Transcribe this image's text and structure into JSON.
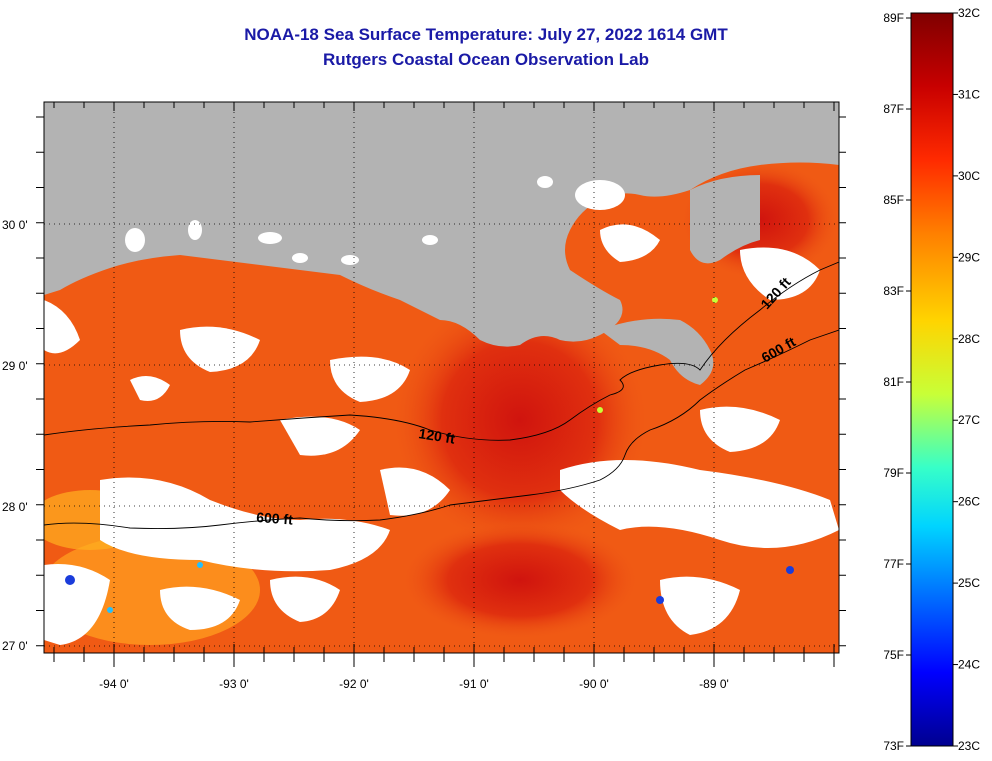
{
  "header": {
    "title": "NOAA-18 Sea Surface Temperature:  July 27, 2022 1614 GMT",
    "subtitle": "Rutgers Coastal Ocean Observation Lab"
  },
  "map": {
    "lon_labels": [
      "-94 0'",
      "-93 0'",
      "-92 0'",
      "-91 0'",
      "-90 0'",
      "-89 0'"
    ],
    "lat_labels": [
      "30 0'",
      "29 0'",
      "28 0'",
      "27 0'"
    ],
    "contours": {
      "shelf_120": "120 ft",
      "slope_600": "600 ft",
      "east_120": "120 ft",
      "east_600": "600 ft"
    },
    "colors": {
      "land": "#b3b3b3",
      "cloud": "#ffffff",
      "warm": "#f05a14",
      "hot": "#d61a10",
      "cool": "#ffb300"
    }
  },
  "colorbar": {
    "fahrenheit": [
      "89F",
      "87F",
      "85F",
      "83F",
      "81F",
      "79F",
      "77F",
      "75F",
      "73F"
    ],
    "celsius": [
      "32C",
      "31C",
      "30C",
      "29C",
      "28C",
      "27C",
      "26C",
      "25C",
      "24C",
      "23C"
    ],
    "gradient": [
      "#7f0000",
      "#c80000",
      "#ff2a00",
      "#ff7f00",
      "#ffd400",
      "#c8ff37",
      "#37ffc8",
      "#00d4ff",
      "#007fff",
      "#0000ff",
      "#00008f"
    ]
  }
}
